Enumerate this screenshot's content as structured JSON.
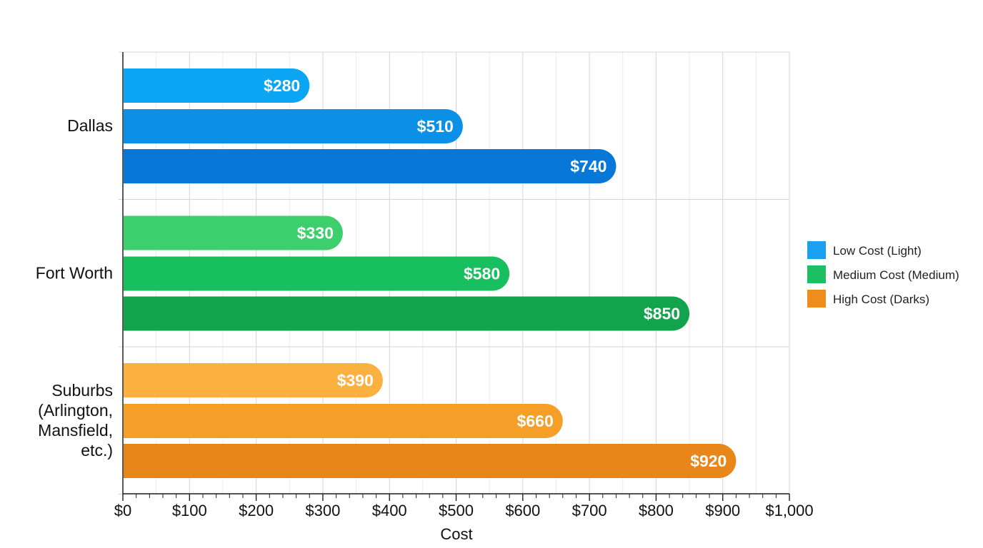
{
  "chart_data": {
    "type": "bar",
    "orientation": "horizontal",
    "title": "",
    "xlabel": "Cost",
    "ylabel": "",
    "xlim": [
      0,
      1000
    ],
    "x_ticks": [
      0,
      100,
      200,
      300,
      400,
      500,
      600,
      700,
      800,
      900,
      1000
    ],
    "x_tick_labels": [
      "$0",
      "$100",
      "$200",
      "$300",
      "$400",
      "$500",
      "$600",
      "$700",
      "$800",
      "$900",
      "$1,000"
    ],
    "grid": true,
    "legend_position": "right",
    "categories": [
      {
        "label_lines": [
          "Dallas"
        ]
      },
      {
        "label_lines": [
          "Fort Worth"
        ]
      },
      {
        "label_lines": [
          "Suburbs",
          "(Arlington,",
          "Mansfield,",
          "etc.)"
        ]
      }
    ],
    "series": [
      {
        "name": "Low Cost (Light)",
        "values": [
          280,
          330,
          390
        ],
        "labels": [
          "$280",
          "$330",
          "$390"
        ]
      },
      {
        "name": "Medium Cost (Medium)",
        "values": [
          510,
          580,
          660
        ],
        "labels": [
          "$510",
          "$580",
          "$660"
        ]
      },
      {
        "name": "High Cost (Darks)",
        "values": [
          740,
          850,
          920
        ],
        "labels": [
          "$740",
          "$850",
          "$920"
        ]
      }
    ],
    "colors": {
      "bars": [
        [
          "#0aa6f4",
          "#0a90e6",
          "#0878d8"
        ],
        [
          "#3ccf6c",
          "#18bf5e",
          "#12a44c"
        ],
        [
          "#fbb040",
          "#f59e28",
          "#e8861a"
        ]
      ],
      "legend": [
        "#1aa0f0",
        "#1dbf62",
        "#ee8c1c"
      ]
    }
  }
}
